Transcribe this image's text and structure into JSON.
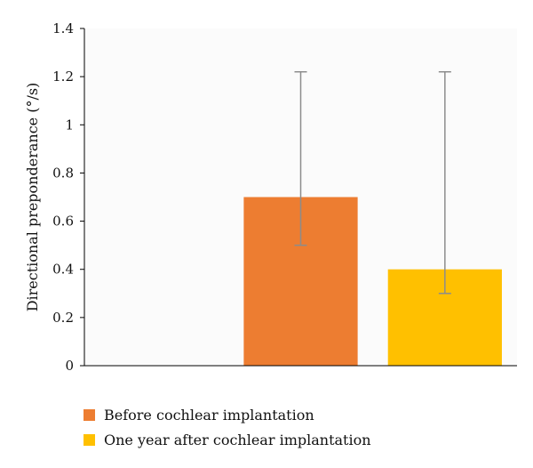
{
  "chart_data": {
    "type": "bar",
    "title": "",
    "xlabel": "",
    "ylabel": "Directional preponderance (°/s)",
    "ylim": [
      0,
      1.4
    ],
    "yticks": [
      0,
      0.2,
      0.4,
      0.6,
      0.8,
      1,
      1.2,
      1.4
    ],
    "ytick_labels": [
      "0",
      "0.2",
      "0.4",
      "0.6",
      "0.8",
      "1",
      "1.2",
      "1.4"
    ],
    "grid": false,
    "legend_position": "bottom",
    "series": [
      {
        "name": "Before cochlear implantation",
        "value": 0.7,
        "error_low": 0.5,
        "error_high": 1.22,
        "color": "#ED7D31"
      },
      {
        "name": "One year after cochlear implantation",
        "value": 0.4,
        "error_low": 0.3,
        "error_high": 1.22,
        "color": "#FFC000"
      }
    ]
  }
}
